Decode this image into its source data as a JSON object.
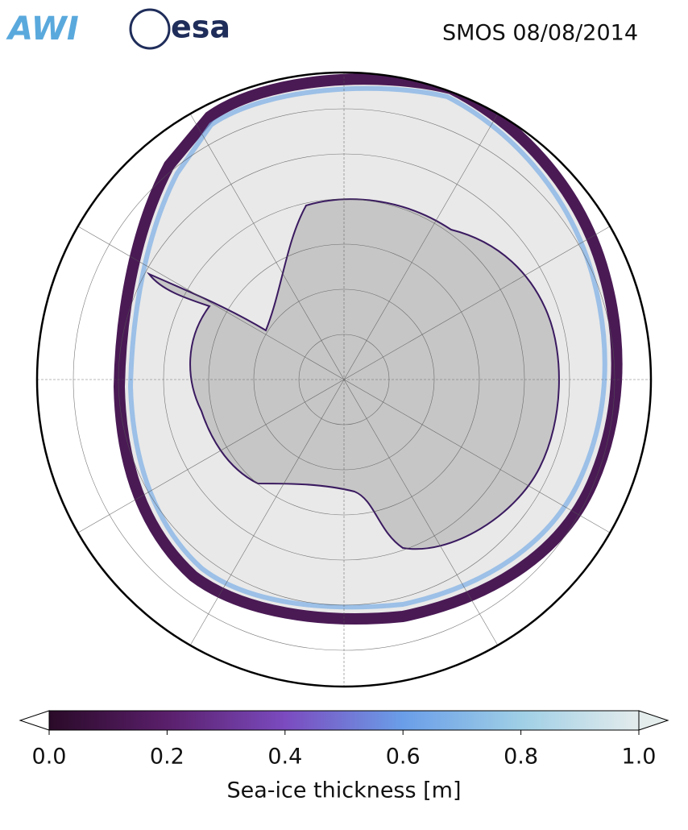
{
  "header": {
    "logo_left": "AWI",
    "logo_right": "esa",
    "title": "SMOS 08/08/2014"
  },
  "colorbar": {
    "label": "Sea-ice thickness [m]",
    "lim": [
      0,
      1
    ],
    "ticks": [
      {
        "value": 0,
        "label": "0.0"
      },
      0.2,
      0.4,
      0.6,
      0.8,
      {
        "value": 1,
        "label": "1.0"
      }
    ],
    "colors": [
      "#2a0a28",
      "#5a1f6b",
      "#7b4bbf",
      "#6a9ee8",
      "#9fcfe6",
      "#e4ecec"
    ]
  }
}
